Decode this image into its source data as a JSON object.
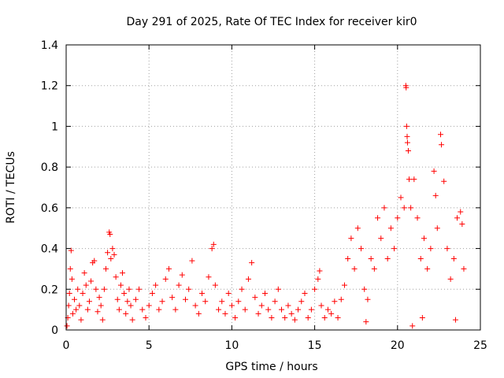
{
  "chart_data": {
    "type": "scatter",
    "title": "Day 291 of 2025, Rate Of TEC Index for receiver kir0",
    "xlabel": "GPS time / hours",
    "ylabel": "ROTI / TECUs",
    "xlim": [
      0,
      25
    ],
    "ylim": [
      0,
      1.4
    ],
    "xticks": [
      "0",
      "5",
      "10",
      "15",
      "20",
      "25"
    ],
    "yticks": [
      "0",
      "0.2",
      "0.4",
      "0.6",
      "0.8",
      "1",
      "1.2",
      "1.4"
    ],
    "grid": true,
    "marker": "+",
    "color": "#ff0000",
    "points": [
      [
        0.05,
        0.02
      ],
      [
        0.1,
        0.06
      ],
      [
        0.15,
        0.12
      ],
      [
        0.2,
        0.18
      ],
      [
        0.25,
        0.3
      ],
      [
        0.3,
        0.39
      ],
      [
        0.35,
        0.25
      ],
      [
        0.4,
        0.08
      ],
      [
        0.5,
        0.15
      ],
      [
        0.6,
        0.1
      ],
      [
        0.7,
        0.2
      ],
      [
        0.8,
        0.12
      ],
      [
        0.9,
        0.05
      ],
      [
        1.0,
        0.18
      ],
      [
        1.1,
        0.28
      ],
      [
        1.2,
        0.22
      ],
      [
        1.3,
        0.1
      ],
      [
        1.4,
        0.14
      ],
      [
        1.5,
        0.24
      ],
      [
        1.6,
        0.33
      ],
      [
        1.7,
        0.34
      ],
      [
        1.8,
        0.2
      ],
      [
        1.9,
        0.09
      ],
      [
        2.0,
        0.16
      ],
      [
        2.1,
        0.12
      ],
      [
        2.2,
        0.05
      ],
      [
        2.3,
        0.2
      ],
      [
        2.4,
        0.3
      ],
      [
        2.5,
        0.38
      ],
      [
        2.6,
        0.48
      ],
      [
        2.65,
        0.47
      ],
      [
        2.7,
        0.35
      ],
      [
        2.8,
        0.4
      ],
      [
        2.9,
        0.37
      ],
      [
        3.0,
        0.26
      ],
      [
        3.1,
        0.15
      ],
      [
        3.2,
        0.1
      ],
      [
        3.3,
        0.22
      ],
      [
        3.4,
        0.28
      ],
      [
        3.5,
        0.18
      ],
      [
        3.6,
        0.08
      ],
      [
        3.7,
        0.14
      ],
      [
        3.8,
        0.2
      ],
      [
        3.9,
        0.12
      ],
      [
        4.0,
        0.05
      ],
      [
        4.2,
        0.15
      ],
      [
        4.4,
        0.2
      ],
      [
        4.6,
        0.1
      ],
      [
        4.8,
        0.06
      ],
      [
        5.0,
        0.12
      ],
      [
        5.2,
        0.18
      ],
      [
        5.4,
        0.22
      ],
      [
        5.6,
        0.1
      ],
      [
        5.8,
        0.14
      ],
      [
        6.0,
        0.25
      ],
      [
        6.2,
        0.3
      ],
      [
        6.4,
        0.16
      ],
      [
        6.6,
        0.1
      ],
      [
        6.8,
        0.22
      ],
      [
        7.0,
        0.27
      ],
      [
        7.2,
        0.15
      ],
      [
        7.4,
        0.2
      ],
      [
        7.6,
        0.34
      ],
      [
        7.8,
        0.12
      ],
      [
        8.0,
        0.08
      ],
      [
        8.2,
        0.18
      ],
      [
        8.4,
        0.14
      ],
      [
        8.6,
        0.26
      ],
      [
        8.8,
        0.4
      ],
      [
        8.9,
        0.42
      ],
      [
        9.0,
        0.22
      ],
      [
        9.2,
        0.1
      ],
      [
        9.4,
        0.14
      ],
      [
        9.6,
        0.08
      ],
      [
        9.8,
        0.18
      ],
      [
        10.0,
        0.12
      ],
      [
        10.2,
        0.06
      ],
      [
        10.4,
        0.14
      ],
      [
        10.6,
        0.2
      ],
      [
        10.8,
        0.1
      ],
      [
        11.0,
        0.25
      ],
      [
        11.2,
        0.33
      ],
      [
        11.4,
        0.16
      ],
      [
        11.6,
        0.08
      ],
      [
        11.8,
        0.12
      ],
      [
        12.0,
        0.18
      ],
      [
        12.2,
        0.1
      ],
      [
        12.4,
        0.06
      ],
      [
        12.6,
        0.14
      ],
      [
        12.8,
        0.2
      ],
      [
        13.0,
        0.1
      ],
      [
        13.2,
        0.06
      ],
      [
        13.4,
        0.12
      ],
      [
        13.6,
        0.08
      ],
      [
        13.8,
        0.05
      ],
      [
        14.0,
        0.1
      ],
      [
        14.2,
        0.14
      ],
      [
        14.4,
        0.18
      ],
      [
        14.6,
        0.06
      ],
      [
        14.8,
        0.1
      ],
      [
        15.0,
        0.2
      ],
      [
        15.2,
        0.25
      ],
      [
        15.3,
        0.29
      ],
      [
        15.4,
        0.12
      ],
      [
        15.6,
        0.06
      ],
      [
        15.8,
        0.1
      ],
      [
        16.0,
        0.08
      ],
      [
        16.2,
        0.14
      ],
      [
        16.4,
        0.06
      ],
      [
        16.6,
        0.15
      ],
      [
        16.8,
        0.22
      ],
      [
        17.0,
        0.35
      ],
      [
        17.2,
        0.45
      ],
      [
        17.4,
        0.3
      ],
      [
        17.6,
        0.5
      ],
      [
        17.8,
        0.4
      ],
      [
        18.0,
        0.2
      ],
      [
        18.2,
        0.15
      ],
      [
        18.4,
        0.35
      ],
      [
        18.6,
        0.3
      ],
      [
        18.8,
        0.55
      ],
      [
        19.0,
        0.45
      ],
      [
        19.2,
        0.6
      ],
      [
        19.4,
        0.35
      ],
      [
        19.6,
        0.5
      ],
      [
        19.8,
        0.4
      ],
      [
        20.0,
        0.55
      ],
      [
        20.2,
        0.65
      ],
      [
        20.4,
        0.6
      ],
      [
        20.5,
        1.2
      ],
      [
        20.52,
        1.19
      ],
      [
        20.55,
        1.0
      ],
      [
        20.58,
        0.95
      ],
      [
        20.6,
        0.92
      ],
      [
        20.65,
        0.88
      ],
      [
        20.7,
        0.74
      ],
      [
        20.8,
        0.6
      ],
      [
        21.0,
        0.74
      ],
      [
        21.2,
        0.55
      ],
      [
        21.4,
        0.35
      ],
      [
        21.6,
        0.45
      ],
      [
        21.8,
        0.3
      ],
      [
        22.0,
        0.4
      ],
      [
        22.2,
        0.78
      ],
      [
        22.3,
        0.66
      ],
      [
        22.4,
        0.5
      ],
      [
        22.6,
        0.96
      ],
      [
        22.65,
        0.91
      ],
      [
        22.8,
        0.73
      ],
      [
        23.0,
        0.4
      ],
      [
        23.2,
        0.25
      ],
      [
        23.4,
        0.35
      ],
      [
        23.6,
        0.55
      ],
      [
        23.8,
        0.58
      ],
      [
        23.9,
        0.52
      ],
      [
        24.0,
        0.3
      ],
      [
        18.1,
        0.04
      ],
      [
        20.9,
        0.02
      ],
      [
        21.5,
        0.06
      ],
      [
        23.5,
        0.05
      ]
    ]
  }
}
